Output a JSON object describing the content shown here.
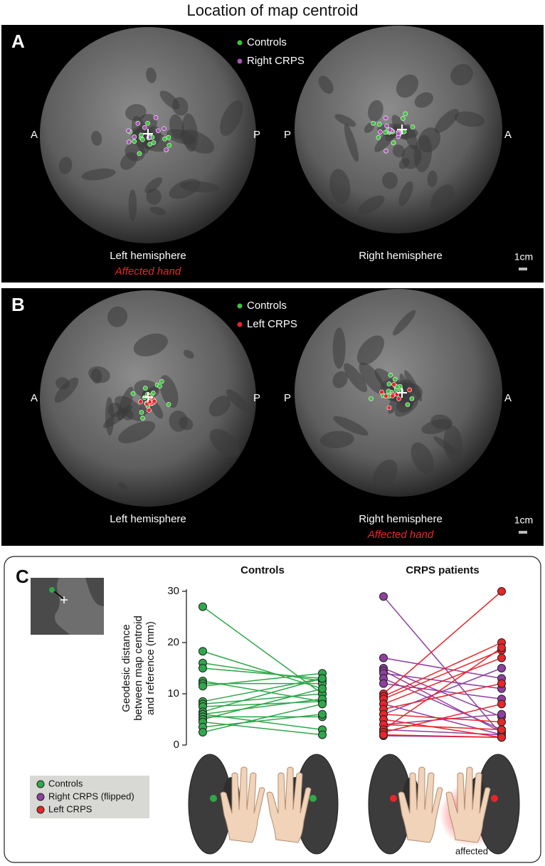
{
  "title": "Location of map centroid",
  "panels": [
    {
      "label": "A",
      "legend": [
        {
          "name": "Controls",
          "color": "#3cc43c"
        },
        {
          "name": "Right CRPS",
          "color": "#a855b5"
        }
      ],
      "hemispheres": [
        {
          "name": "Left hemisphere",
          "note": "Affected hand",
          "ends": [
            "A",
            "P"
          ]
        },
        {
          "name": "Right hemisphere",
          "ends": [
            "P",
            "A"
          ]
        }
      ],
      "scale": "1cm"
    },
    {
      "label": "B",
      "legend": [
        {
          "name": "Controls",
          "color": "#3cc43c"
        },
        {
          "name": "Left CRPS",
          "color": "#e8262a"
        }
      ],
      "hemispheres": [
        {
          "name": "Left hemisphere",
          "ends": [
            "A",
            "P"
          ]
        },
        {
          "name": "Right hemisphere",
          "note": "Affected hand",
          "ends": [
            "P",
            "A"
          ]
        }
      ],
      "scale": "1cm"
    }
  ],
  "panel_c": {
    "label": "C",
    "affected": "affected"
  },
  "chart_data": [
    {
      "type": "slope",
      "title": "Controls",
      "ylabel": [
        "Geodesic distance",
        "between map centroid",
        "and reference (mm)"
      ],
      "ylim": [
        0,
        30
      ],
      "yticks": [
        0,
        10,
        20,
        30
      ],
      "series": [
        {
          "name": "Controls",
          "color": "#2fa84a",
          "values": [
            [
              27,
              10
            ],
            [
              18.3,
              11
            ],
            [
              16,
              12.5
            ],
            [
              15,
              13
            ],
            [
              12.5,
              8.5
            ],
            [
              12,
              12
            ],
            [
              11.5,
              14
            ],
            [
              8.5,
              13
            ],
            [
              8,
              10
            ],
            [
              7.5,
              8.5
            ],
            [
              6.5,
              13
            ],
            [
              6,
              9
            ],
            [
              6,
              3
            ],
            [
              5.5,
              5.5
            ],
            [
              5,
              11
            ],
            [
              4.5,
              2
            ],
            [
              3.5,
              6
            ],
            [
              2.5,
              8
            ]
          ]
        }
      ]
    },
    {
      "type": "slope",
      "title": "CRPS patients",
      "ylim": [
        0,
        30
      ],
      "series": [
        {
          "name": "Right CRPS (flipped)",
          "color": "#8e3fa0",
          "values": [
            [
              29,
              2
            ],
            [
              17,
              13
            ],
            [
              15,
              5.5
            ],
            [
              14.5,
              2.5
            ],
            [
              14,
              11
            ],
            [
              13,
              3
            ],
            [
              12,
              9
            ],
            [
              8,
              2
            ],
            [
              6,
              15
            ],
            [
              3,
              2
            ],
            [
              1.8,
              1.5
            ],
            [
              4,
              6
            ]
          ]
        },
        {
          "name": "Left CRPS",
          "color": "#e8262a",
          "values": [
            [
              10,
              30
            ],
            [
              9.5,
              20
            ],
            [
              9,
              18.5
            ],
            [
              8,
              17
            ],
            [
              7,
              12
            ],
            [
              6,
              4.5
            ],
            [
              5,
              1.5
            ],
            [
              4,
              3
            ],
            [
              3,
              19
            ],
            [
              2.5,
              8
            ],
            [
              2,
              1.5
            ]
          ]
        }
      ]
    }
  ]
}
